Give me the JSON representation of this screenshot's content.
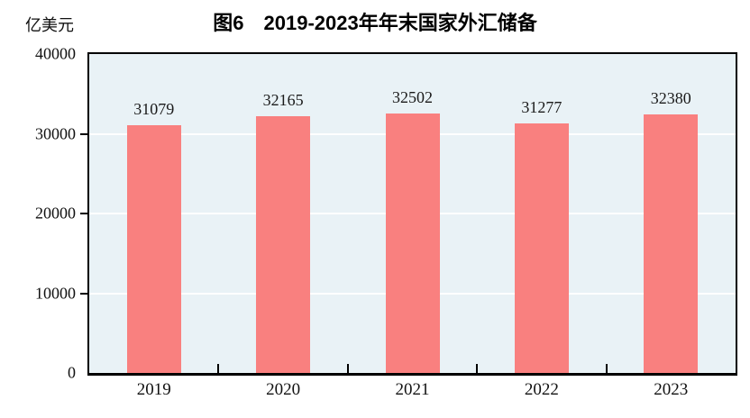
{
  "title": "图6　2019-2023年年末国家外汇储备",
  "unit_label": "亿美元",
  "chart_data": {
    "type": "bar",
    "title": "图6　2019-2023年年末国家外汇储备",
    "ylabel": "亿美元",
    "xlabel": "",
    "categories": [
      "2019",
      "2020",
      "2021",
      "2022",
      "2023"
    ],
    "values": [
      31079,
      32165,
      32502,
      31277,
      32380
    ],
    "data_labels": [
      "31079",
      "32165",
      "32502",
      "31277",
      "32380"
    ],
    "ylim": [
      0,
      40000
    ],
    "yticks": [
      0,
      10000,
      20000,
      30000,
      40000
    ],
    "ytick_labels": [
      "0",
      "10000",
      "20000",
      "30000",
      "40000"
    ],
    "legend": "none",
    "grid": "horizontal-white",
    "colors": {
      "bar": "#f9807f",
      "plot_background": "#e9f2f6",
      "gridline": "#ffffff",
      "axis_border": "#000000",
      "text": "#111111"
    }
  }
}
